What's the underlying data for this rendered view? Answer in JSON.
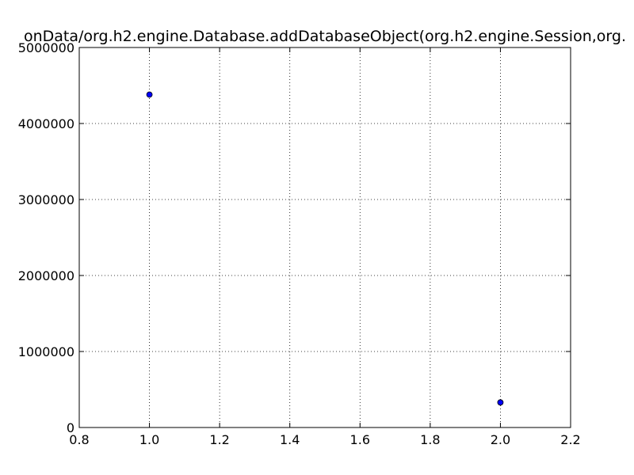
{
  "chart_data": {
    "type": "scatter",
    "title": "onData/org.h2.engine.Database.addDatabaseObject(org.h2.engine.Session,org.",
    "xlabel": "",
    "ylabel": "",
    "xlim": [
      0.8,
      2.2
    ],
    "ylim": [
      0,
      5000000
    ],
    "x_ticks": [
      "0.8",
      "1.0",
      "1.2",
      "1.4",
      "1.6",
      "1.8",
      "2.0",
      "2.2"
    ],
    "y_ticks": [
      "0",
      "1000000",
      "2000000",
      "3000000",
      "4000000",
      "5000000"
    ],
    "grid": true,
    "points": [
      {
        "x": 1.0,
        "y": 4380000
      },
      {
        "x": 2.0,
        "y": 330000
      }
    ],
    "marker_color": "#0000ff",
    "marker_edge_color": "#000000"
  }
}
